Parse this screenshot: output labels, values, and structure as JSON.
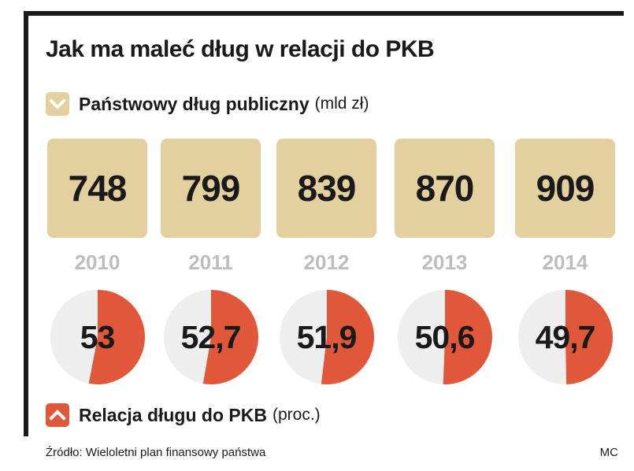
{
  "title": "Jak ma maleć dług w relacji do PKB",
  "legend": {
    "debt": {
      "label": "Państwowy dług publiczny",
      "unit": "(mld zł)",
      "icon": "chevron-down-icon",
      "color": "#e4d09e"
    },
    "ratio": {
      "label": "Relacja długu do PKB",
      "unit": "(proc.)",
      "icon": "chevron-up-icon",
      "color": "#e0573a"
    }
  },
  "chart_data": {
    "type": "table",
    "title": "Jak ma maleć dług w relacji do PKB",
    "categories": [
      "2010",
      "2011",
      "2012",
      "2013",
      "2014"
    ],
    "series": [
      {
        "name": "Państwowy dług publiczny (mld zł)",
        "values": [
          748,
          799,
          839,
          870,
          909
        ],
        "labels": [
          "748",
          "799",
          "839",
          "870",
          "909"
        ]
      },
      {
        "name": "Relacja długu do PKB (proc.)",
        "values": [
          53,
          52.7,
          51.9,
          50.6,
          49.7
        ],
        "labels": [
          "53",
          "52,7",
          "51,9",
          "50,6",
          "49,7"
        ]
      }
    ]
  },
  "colors": {
    "box": "#e4d09e",
    "pie_fill": "#e0573a",
    "pie_bg": "#eeeeee",
    "year": "#bdbdbd",
    "frame": "#1a1a1a"
  },
  "source": "Źródło: Wieloletni plan finansowy państwa",
  "author": "MC"
}
